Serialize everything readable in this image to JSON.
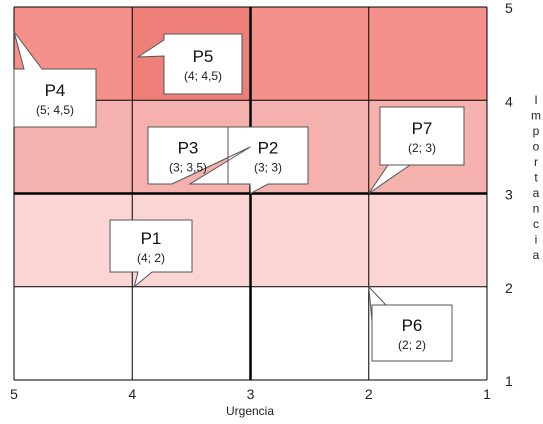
{
  "chart_data": {
    "type": "scatter",
    "title": "",
    "xlabel": "Urgencia",
    "ylabel": "Importancia",
    "xlim": [
      5,
      1
    ],
    "ylim": [
      1,
      5
    ],
    "x_ticks": [
      "5",
      "4",
      "3",
      "2",
      "1"
    ],
    "y_ticks": [
      "1",
      "2",
      "3",
      "4",
      "5"
    ],
    "grid": true,
    "major_lines": {
      "x": 3,
      "y": 3
    },
    "bands": [
      {
        "from": 4,
        "to": 5,
        "color": "#f4918a"
      },
      {
        "from": 3,
        "to": 4,
        "color": "#f5b1ad"
      },
      {
        "from": 2,
        "to": 3,
        "color": "#fbd5d3"
      },
      {
        "from": 1,
        "to": 2,
        "color": "#ffffff"
      }
    ],
    "cell_highlight": {
      "x": [
        4,
        3
      ],
      "y": [
        4,
        5
      ],
      "color": "#ef8079"
    },
    "points": [
      {
        "name": "P1",
        "x": 4,
        "y": 2,
        "label": "(4; 2)"
      },
      {
        "name": "P2",
        "x": 3,
        "y": 3,
        "label": "(3; 3)"
      },
      {
        "name": "P3",
        "x": 3,
        "y": 3.5,
        "label": "(3; 3,5)"
      },
      {
        "name": "P4",
        "x": 5,
        "y": 4.5,
        "label": "(5; 4,5)"
      },
      {
        "name": "P5",
        "x": 4,
        "y": 4.5,
        "label": "(4; 4,5)"
      },
      {
        "name": "P6",
        "x": 2,
        "y": 2,
        "label": "(2; 2)"
      },
      {
        "name": "P7",
        "x": 2,
        "y": 3,
        "label": "(2; 3)"
      }
    ]
  }
}
